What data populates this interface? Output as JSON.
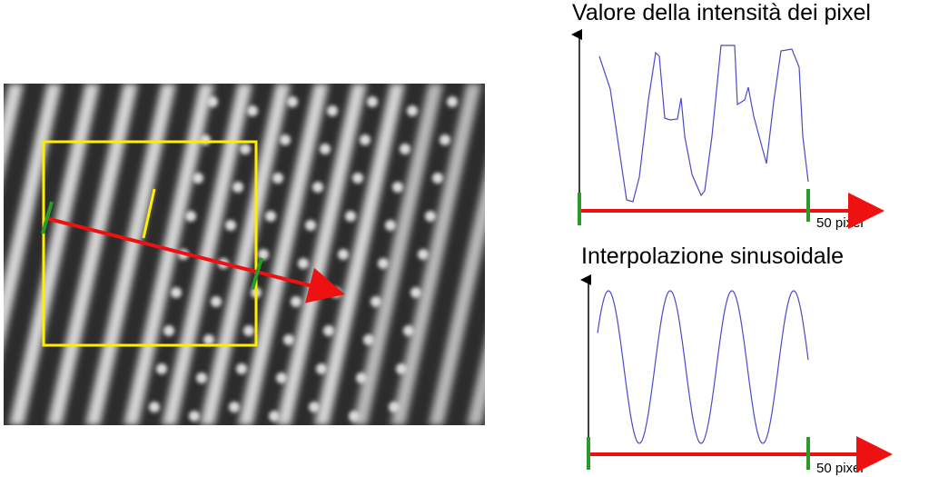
{
  "panels": {
    "raw": {
      "title": "Valore della intensità dei pixel",
      "x_label": "50 pixel"
    },
    "fit": {
      "title": "Interpolazione sinusoidale",
      "x_label": "50 pixel"
    }
  },
  "colors": {
    "roi_box": "#ffee00",
    "profile_line": "#ee1111",
    "marker": "#2a9a2a",
    "curve": "#4a4ac8",
    "stripe": "#e8e8e8",
    "background": "#2a2a2a"
  }
}
